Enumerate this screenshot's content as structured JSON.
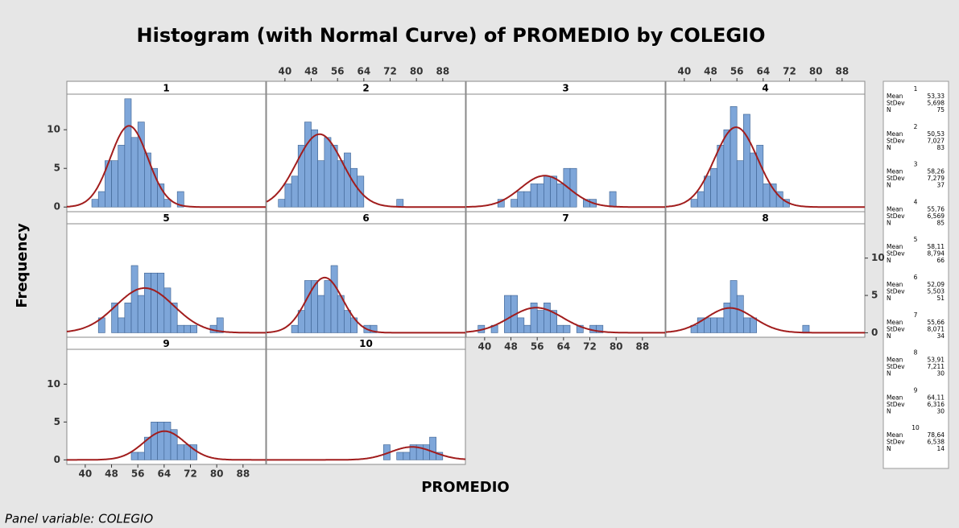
{
  "chart_data": {
    "type": "histogram",
    "title": "Histogram (with Normal Curve) of PROMEDIO by COLEGIO",
    "x_label": "PROMEDIO",
    "y_label": "Frequency",
    "footnote": "Panel variable: COLEGIO",
    "bar_color": "#7ea6d9",
    "bar_edge_color": "#3a5f8f",
    "curve_color": "#a11d1d",
    "xlim": [
      34.4,
      94.9
    ],
    "ylim": [
      -0.6,
      14.6
    ],
    "xticks": [
      40,
      48,
      56,
      64,
      72,
      80,
      88
    ],
    "yticks": [
      0,
      5,
      10
    ],
    "stat_labels": [
      "Mean",
      "StDev",
      "N"
    ],
    "bins": [
      36,
      38,
      40,
      42,
      44,
      46,
      48,
      50,
      52,
      54,
      56,
      58,
      60,
      62,
      64,
      66,
      68,
      70,
      72,
      74,
      76,
      78,
      80,
      82,
      84,
      86,
      88,
      90,
      92,
      94
    ],
    "panels": [
      {
        "name": "1",
        "counts": [
          0,
          0,
          0,
          1,
          2,
          6,
          6,
          8,
          14,
          9,
          11,
          7,
          5,
          3,
          1,
          0,
          2,
          0,
          0,
          0,
          0,
          0,
          0,
          0,
          0,
          0,
          0,
          0,
          0
        ],
        "mean": {
          "value": 53.33,
          "label": "53,33"
        },
        "stdev": {
          "value": 5.698,
          "label": "5,698"
        },
        "n": 75
      },
      {
        "name": "2",
        "counts": [
          0,
          1,
          3,
          4,
          8,
          11,
          10,
          6,
          9,
          8,
          6,
          7,
          5,
          4,
          0,
          0,
          0,
          0,
          0,
          1,
          0,
          0,
          0,
          0,
          0,
          0,
          0,
          0,
          0
        ],
        "mean": {
          "value": 50.53,
          "label": "50,53"
        },
        "stdev": {
          "value": 7.027,
          "label": "7,027"
        },
        "n": 83
      },
      {
        "name": "3",
        "counts": [
          0,
          0,
          0,
          0,
          1,
          0,
          1,
          2,
          2,
          3,
          3,
          4,
          4,
          3,
          5,
          5,
          0,
          1,
          1,
          0,
          0,
          2,
          0,
          0,
          0,
          0,
          0,
          0,
          0
        ],
        "mean": {
          "value": 58.26,
          "label": "58,26"
        },
        "stdev": {
          "value": 7.279,
          "label": "7,279"
        },
        "n": 37
      },
      {
        "name": "4",
        "counts": [
          0,
          0,
          0,
          1,
          2,
          4,
          5,
          8,
          10,
          13,
          6,
          12,
          7,
          8,
          3,
          3,
          2,
          1,
          0,
          0,
          0,
          0,
          0,
          0,
          0,
          0,
          0,
          0,
          0
        ],
        "mean": {
          "value": 55.76,
          "label": "55,76"
        },
        "stdev": {
          "value": 6.569,
          "label": "6,569"
        },
        "n": 85
      },
      {
        "name": "5",
        "counts": [
          0,
          0,
          0,
          0,
          2,
          0,
          4,
          2,
          4,
          9,
          5,
          8,
          8,
          8,
          6,
          4,
          1,
          1,
          1,
          0,
          0,
          1,
          2,
          0,
          0,
          0,
          0,
          0,
          0
        ],
        "mean": {
          "value": 58.11,
          "label": "58,11"
        },
        "stdev": {
          "value": 8.794,
          "label": "8,794"
        },
        "n": 66
      },
      {
        "name": "6",
        "counts": [
          0,
          0,
          0,
          1,
          3,
          7,
          7,
          5,
          7,
          9,
          5,
          3,
          2,
          0,
          1,
          1,
          0,
          0,
          0,
          0,
          0,
          0,
          0,
          0,
          0,
          0,
          0,
          0,
          0
        ],
        "mean": {
          "value": 52.09,
          "label": "52,09"
        },
        "stdev": {
          "value": 5.503,
          "label": "5,503"
        },
        "n": 51
      },
      {
        "name": "7",
        "counts": [
          0,
          1,
          0,
          1,
          0,
          5,
          5,
          2,
          1,
          4,
          3,
          4,
          3,
          1,
          1,
          0,
          1,
          0,
          1,
          1,
          0,
          0,
          0,
          0,
          0,
          0,
          0,
          0,
          0
        ],
        "mean": {
          "value": 55.66,
          "label": "55,66"
        },
        "stdev": {
          "value": 8.071,
          "label": "8,071"
        },
        "n": 34
      },
      {
        "name": "8",
        "counts": [
          0,
          0,
          0,
          1,
          2,
          2,
          2,
          2,
          4,
          7,
          5,
          2,
          2,
          0,
          0,
          0,
          0,
          0,
          0,
          0,
          1,
          0,
          0,
          0,
          0,
          0,
          0,
          0,
          0
        ],
        "mean": {
          "value": 53.91,
          "label": "53,91"
        },
        "stdev": {
          "value": 7.211,
          "label": "7,211"
        },
        "n": 30
      },
      {
        "name": "9",
        "counts": [
          0,
          0,
          0,
          0,
          0,
          0,
          0,
          0,
          0,
          1,
          1,
          3,
          5,
          5,
          5,
          4,
          2,
          2,
          2,
          0,
          0,
          0,
          0,
          0,
          0,
          0,
          0,
          0,
          0
        ],
        "mean": {
          "value": 64.11,
          "label": "64,11"
        },
        "stdev": {
          "value": 6.316,
          "label": "6,316"
        },
        "n": 30
      },
      {
        "name": "10",
        "counts": [
          0,
          0,
          0,
          0,
          0,
          0,
          0,
          0,
          0,
          0,
          0,
          0,
          0,
          0,
          0,
          0,
          0,
          2,
          0,
          1,
          1,
          2,
          2,
          2,
          3,
          1,
          0,
          0,
          0
        ],
        "mean": {
          "value": 78.64,
          "label": "78,64"
        },
        "stdev": {
          "value": 6.538,
          "label": "6,538"
        },
        "n": 14
      }
    ]
  }
}
